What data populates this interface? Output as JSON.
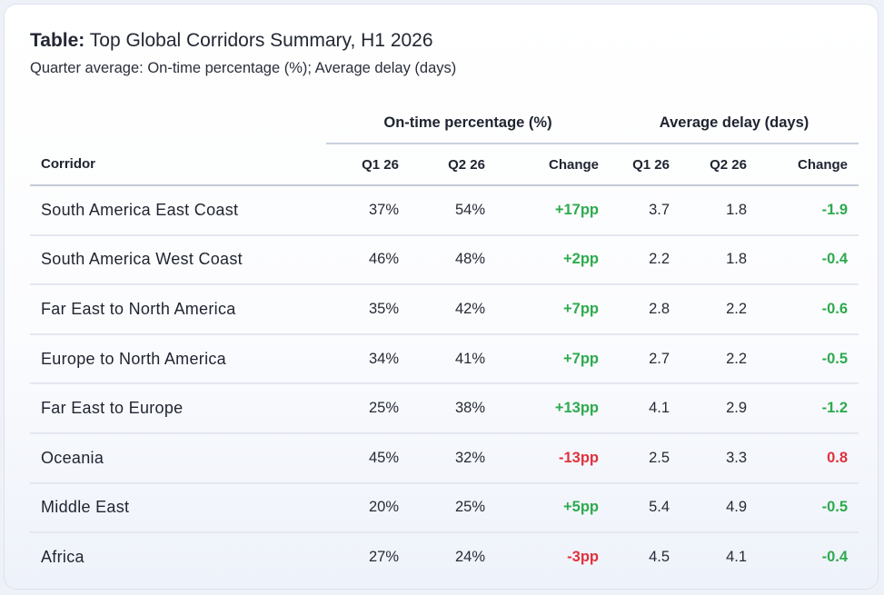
{
  "title_bold": "Table:",
  "title_rest": "Top Global Corridors Summary, H1 2026",
  "subtitle": "Quarter average: On-time percentage (%); Average delay (days)",
  "colors": {
    "positive": "#2eaa4f",
    "negative": "#e0323d"
  },
  "chart_data": {
    "type": "table",
    "column_groups": [
      "On-time percentage (%)",
      "Average delay (days)"
    ],
    "columns": [
      "Corridor",
      "Q1 26",
      "Q2 26",
      "Change",
      "Q1 26",
      "Q2 26",
      "Change"
    ],
    "rows": [
      {
        "corridor": "South America East Coast",
        "ontime_q1": "37%",
        "ontime_q2": "54%",
        "ontime_change": "+17pp",
        "ontime_dir": "pos",
        "delay_q1": "3.7",
        "delay_q2": "1.8",
        "delay_change": "-1.9",
        "delay_dir": "pos"
      },
      {
        "corridor": "South America West Coast",
        "ontime_q1": "46%",
        "ontime_q2": "48%",
        "ontime_change": "+2pp",
        "ontime_dir": "pos",
        "delay_q1": "2.2",
        "delay_q2": "1.8",
        "delay_change": "-0.4",
        "delay_dir": "pos"
      },
      {
        "corridor": "Far East to North America",
        "ontime_q1": "35%",
        "ontime_q2": "42%",
        "ontime_change": "+7pp",
        "ontime_dir": "pos",
        "delay_q1": "2.8",
        "delay_q2": "2.2",
        "delay_change": "-0.6",
        "delay_dir": "pos"
      },
      {
        "corridor": "Europe to North America",
        "ontime_q1": "34%",
        "ontime_q2": "41%",
        "ontime_change": "+7pp",
        "ontime_dir": "pos",
        "delay_q1": "2.7",
        "delay_q2": "2.2",
        "delay_change": "-0.5",
        "delay_dir": "pos"
      },
      {
        "corridor": "Far East to Europe",
        "ontime_q1": "25%",
        "ontime_q2": "38%",
        "ontime_change": "+13pp",
        "ontime_dir": "pos",
        "delay_q1": "4.1",
        "delay_q2": "2.9",
        "delay_change": "-1.2",
        "delay_dir": "pos"
      },
      {
        "corridor": "Oceania",
        "ontime_q1": "45%",
        "ontime_q2": "32%",
        "ontime_change": "-13pp",
        "ontime_dir": "neg",
        "delay_q1": "2.5",
        "delay_q2": "3.3",
        "delay_change": "0.8",
        "delay_dir": "neg"
      },
      {
        "corridor": "Middle East",
        "ontime_q1": "20%",
        "ontime_q2": "25%",
        "ontime_change": "+5pp",
        "ontime_dir": "pos",
        "delay_q1": "5.4",
        "delay_q2": "4.9",
        "delay_change": "-0.5",
        "delay_dir": "pos"
      },
      {
        "corridor": "Africa",
        "ontime_q1": "27%",
        "ontime_q2": "24%",
        "ontime_change": "-3pp",
        "ontime_dir": "neg",
        "delay_q1": "4.5",
        "delay_q2": "4.1",
        "delay_change": "-0.4",
        "delay_dir": "pos"
      }
    ]
  }
}
